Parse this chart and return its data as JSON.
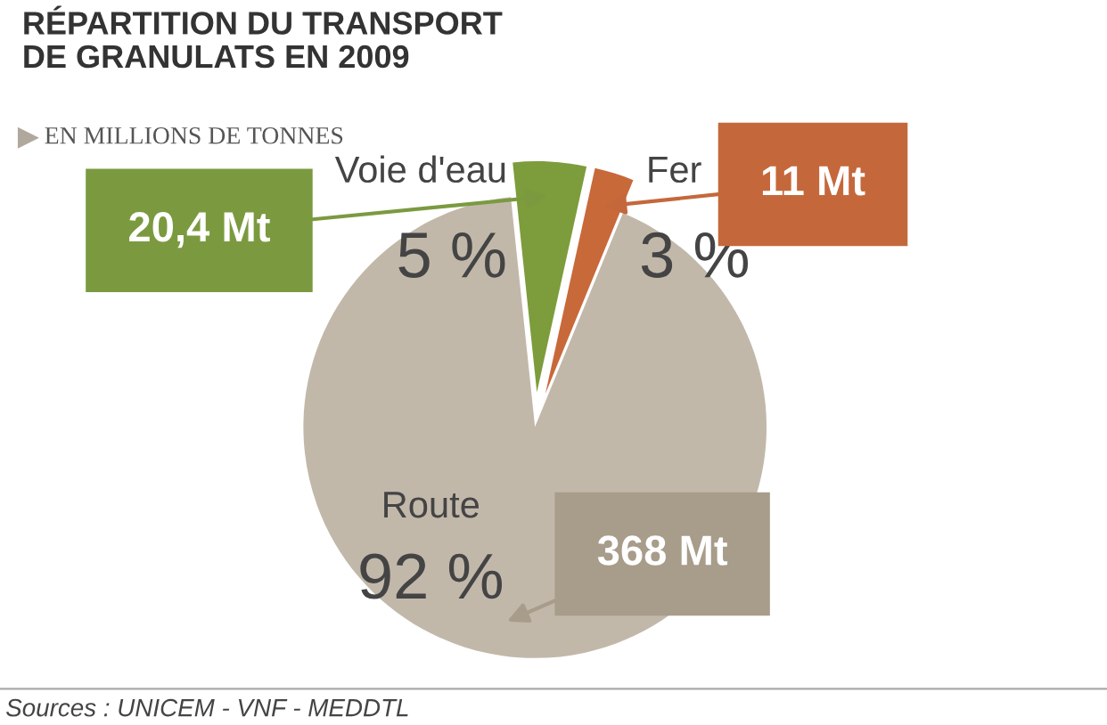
{
  "chart_data": {
    "type": "pie",
    "title": "RÉPARTITION DU TRANSPORT\nDE GRANULATS EN 2009",
    "subtitle": "EN MILLIONS DE TONNES",
    "categories": [
      "Voie d'eau",
      "Fer",
      "Route"
    ],
    "values": [
      20.4,
      11,
      368
    ],
    "colors": [
      "#7d9c3c",
      "#c8693a",
      "#c2b8aa"
    ],
    "value_labels": [
      "20,4 Mt",
      "11 Mt",
      "368 Mt"
    ],
    "annotations": [
      "5 %",
      "3 %",
      "92 %",
      "Sources : UNICEM - VNF - MEDDTL"
    ]
  }
}
